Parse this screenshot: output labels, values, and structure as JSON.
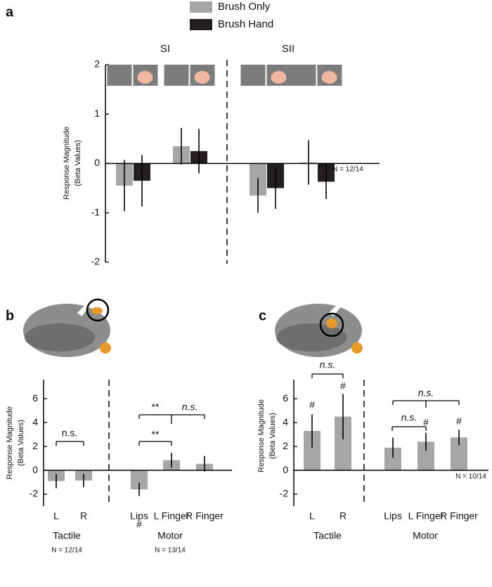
{
  "chart_data": [
    {
      "type": "bar",
      "panel_label": "a",
      "y_label": [
        "Response Magnitude",
        "(Beta Values)"
      ],
      "categories": [
        null,
        null,
        null,
        null
      ],
      "group_labels": [
        "SI",
        "SII"
      ],
      "series": [
        {
          "name": "Brush Only",
          "color": "#a6a6a6",
          "values": [
            -0.45,
            0.35,
            -0.65,
            0.02
          ],
          "errors": [
            0.52,
            0.37,
            0.35,
            0.45
          ]
        },
        {
          "name": "Brush Hand",
          "color": "#231f20",
          "values": [
            -0.35,
            0.25,
            -0.5,
            -0.37
          ],
          "errors": [
            0.52,
            0.45,
            0.42,
            0.35
          ]
        }
      ],
      "ylim": [
        -2,
        2
      ],
      "yticks": [
        -2,
        -1,
        0,
        1,
        2
      ],
      "notes": [
        "N = 12/14"
      ]
    },
    {
      "type": "bar",
      "panel_label": "b",
      "y_label": [
        "Response Magnitude",
        "(Beta Values)"
      ],
      "categories": [
        "L",
        "R",
        "Lips",
        "L Finger",
        "R Finger"
      ],
      "group_labels": [
        "Tactile",
        "Motor"
      ],
      "color": "#a6a6a6",
      "values": [
        -0.9,
        -0.85,
        -1.6,
        0.85,
        0.55
      ],
      "errors": [
        0.6,
        0.55,
        0.55,
        0.6,
        0.65
      ],
      "ylim": [
        -3,
        7.6
      ],
      "yticks": [
        -2,
        0,
        2,
        4,
        6
      ],
      "annotations": [
        "n.s.",
        "**",
        "**",
        "n.s.",
        "#"
      ],
      "notes": [
        "N = 12/14",
        "N = 13/14"
      ]
    },
    {
      "type": "bar",
      "panel_label": "c",
      "y_label": [
        "Response Magnitude",
        "(Beta Values)"
      ],
      "categories": [
        "L",
        "R",
        "Lips",
        "L Finger",
        "R Finger"
      ],
      "group_labels": [
        "Tactile",
        "Motor"
      ],
      "color": "#a6a6a6",
      "values": [
        3.3,
        4.5,
        1.9,
        2.4,
        2.75
      ],
      "errors": [
        1.4,
        1.9,
        0.85,
        0.75,
        0.65
      ],
      "ylim": [
        -3,
        7.6
      ],
      "yticks": [
        -2,
        0,
        2,
        4,
        6
      ],
      "annotations": [
        "n.s.",
        "n.s.",
        "n.s.",
        "#",
        "#",
        "#",
        "#"
      ],
      "notes": [
        "N = 10/14"
      ]
    }
  ]
}
